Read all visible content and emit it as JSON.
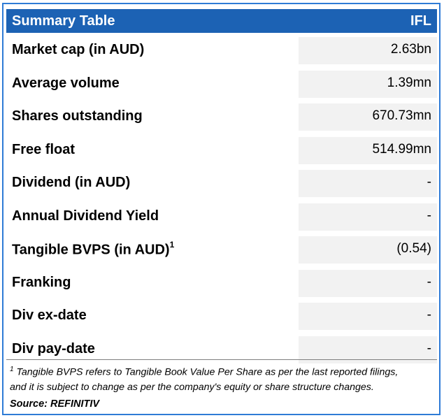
{
  "header": {
    "title": "Summary Table",
    "ticker": "IFL"
  },
  "rows": [
    {
      "label": "Market cap (in AUD)",
      "value": "2.63bn"
    },
    {
      "label": "Average volume",
      "value": "1.39mn"
    },
    {
      "label": "Shares outstanding",
      "value": "670.73mn"
    },
    {
      "label": "Free float",
      "value": "514.99mn"
    },
    {
      "label": "Dividend (in AUD)",
      "value": "-"
    },
    {
      "label": "Annual Dividend Yield",
      "value": "-"
    },
    {
      "label": "Tangible BVPS (in AUD)",
      "superscript": "1",
      "value": "(0.54)"
    },
    {
      "label": "Franking",
      "value": "-"
    },
    {
      "label": "Div ex-date",
      "value": "-"
    },
    {
      "label": "Div pay-date",
      "value": "-"
    }
  ],
  "footnote": {
    "marker": "1",
    "line1": " Tangible BVPS refers to Tangible Book Value Per Share as per the last reported filings,",
    "line2": "and it is subject to change as per the company's equity or share structure changes."
  },
  "source": "Source: REFINITIV",
  "colors": {
    "header_bg": "#1c62b4",
    "frame_border": "#2e7bd6",
    "value_cell_bg": "#f2f2f2"
  }
}
